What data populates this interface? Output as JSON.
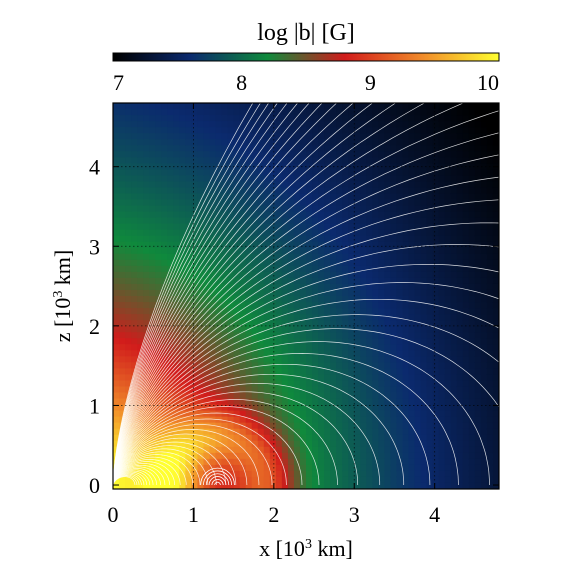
{
  "chart_data": {
    "type": "heatmap",
    "colorbar": {
      "title": "log |b| [G]",
      "min": 7,
      "max": 10,
      "ticks": [
        7,
        8,
        9,
        10
      ],
      "tick_labels": [
        "7",
        "8",
        "9",
        "10"
      ],
      "colors": [
        "#000000",
        "#0b2a6e",
        "#0f8a3c",
        "#d11b1b",
        "#f08a2a",
        "#ffff30"
      ]
    },
    "xlabel": {
      "prefix": "x [10",
      "exp": "3",
      "suffix": " km]"
    },
    "ylabel": {
      "prefix": "z [10",
      "exp": "3",
      "suffix": " km]"
    },
    "xlim": [
      0,
      4.8
    ],
    "ylim": [
      -0.05,
      4.8
    ],
    "xticks": [
      0,
      1,
      2,
      3,
      4
    ],
    "xtick_labels": [
      "0",
      "1",
      "2",
      "3",
      "4"
    ],
    "yticks": [
      0,
      1,
      2,
      3,
      4
    ],
    "ytick_labels": [
      "0",
      "1",
      "2",
      "3",
      "4"
    ],
    "grid": true,
    "field": {
      "description": "dipole magnetic field with a small ring source",
      "dipole_log_b_at_origin": 10.0,
      "ring_center_x": 1.3,
      "ring_center_z": 0.0,
      "field_line_color": "#ffffff"
    },
    "field_lines": {
      "count": 60
    }
  }
}
